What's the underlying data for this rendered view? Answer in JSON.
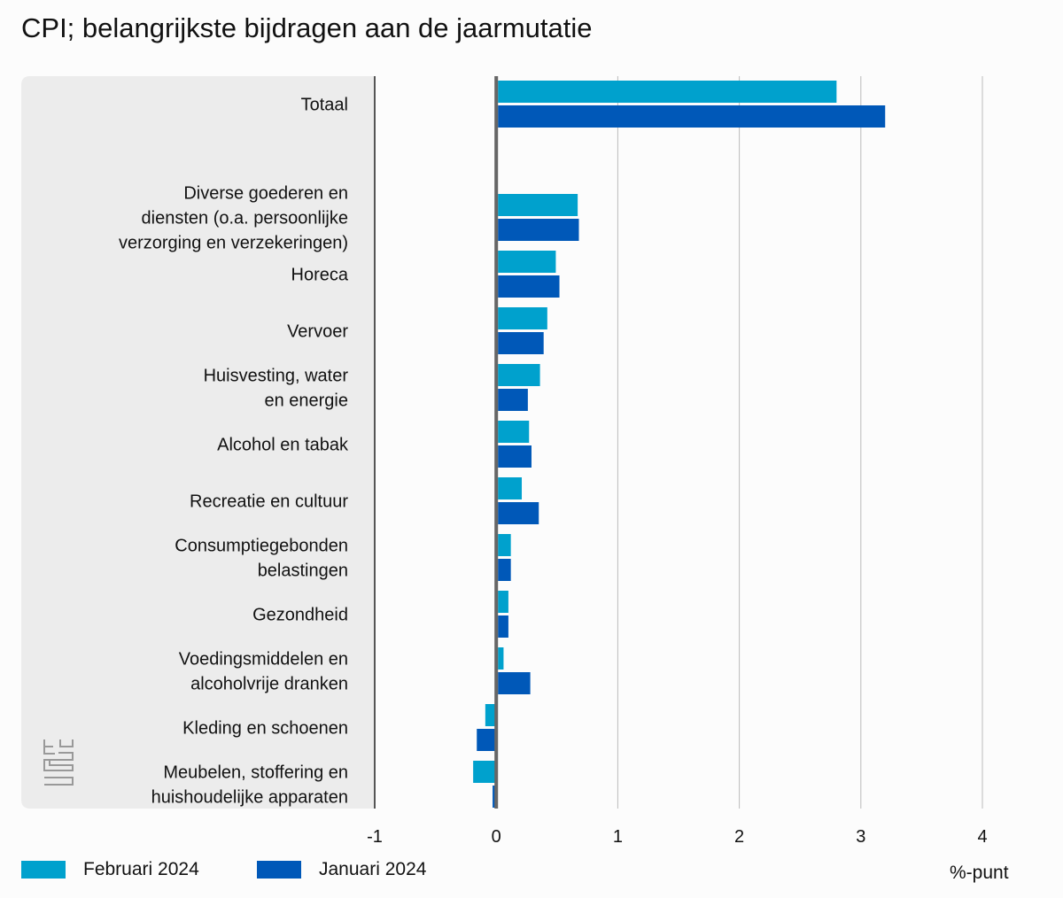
{
  "chart_data": {
    "type": "bar",
    "orientation": "horizontal",
    "title": "CPI; belangrijkste bijdragen aan de jaarmutatie",
    "xlabel": "%-punt",
    "xlim": [
      -1,
      4
    ],
    "xticks": [
      "-1",
      "0",
      "1",
      "2",
      "3",
      "4"
    ],
    "grid": true,
    "legend_placement": "bottom-left",
    "categories": [
      "Totaal",
      "",
      "Diverse goederen en\ndiensten (o.a. persoonlijke\nverzorging en verzekeringen)",
      "Horeca",
      "Vervoer",
      "Huisvesting, water\nen energie",
      "Alcohol en tabak",
      "Recreatie en cultuur",
      "Consumptiegebonden\nbelastingen",
      "Gezondheid",
      "Voedingsmiddelen en\nalcoholvrije dranken",
      "Kleding en schoenen",
      "Meubelen, stoffering en\nhuishoudelijke apparaten"
    ],
    "series": [
      {
        "name": "Februari 2024",
        "color": "#00a1cd",
        "values": [
          2.8,
          null,
          0.67,
          0.49,
          0.42,
          0.36,
          0.27,
          0.21,
          0.12,
          0.1,
          0.06,
          -0.09,
          -0.19
        ]
      },
      {
        "name": "Januari 2024",
        "color": "#0058b8",
        "values": [
          3.2,
          null,
          0.68,
          0.52,
          0.39,
          0.26,
          0.29,
          0.35,
          0.12,
          0.1,
          0.28,
          -0.16,
          -0.03
        ]
      }
    ]
  }
}
